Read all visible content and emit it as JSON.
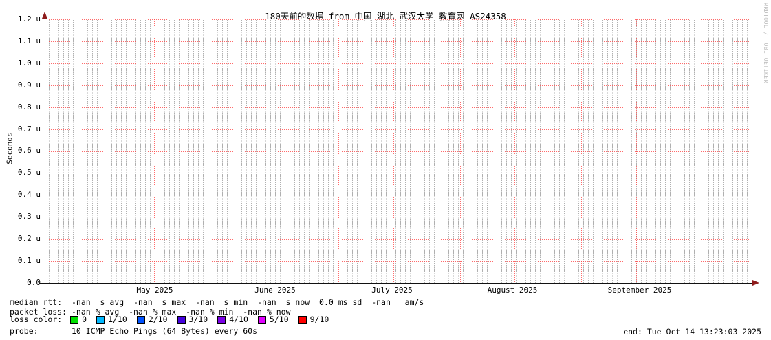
{
  "title": "180天前的数据 from 中国 湖北 武汉大学 教育网 AS24358",
  "watermark": "RRDTOOL / TOBI OETIKER",
  "y_axis": {
    "label": "Seconds",
    "ticks": [
      "1.2 u",
      "1.1 u",
      "1.0 u",
      "0.9 u",
      "0.8 u",
      "0.7 u",
      "0.6 u",
      "0.5 u",
      "0.4 u",
      "0.3 u",
      "0.2 u",
      "0.1 u",
      "0.0"
    ]
  },
  "x_axis": {
    "ticks": [
      "May 2025",
      "June 2025",
      "July 2025",
      "August 2025",
      "September 2025"
    ]
  },
  "legend": {
    "median_rtt": "median rtt:  -nan  s avg  -nan  s max  -nan  s min  -nan  s now  0.0 ms sd  -nan   am/s",
    "packet_loss": "packet loss: -nan % avg  -nan % max  -nan % min  -nan % now",
    "loss_color_label": "loss color:",
    "loss_colors": [
      {
        "label": "0",
        "color": "#00e000"
      },
      {
        "label": "1/10",
        "color": "#00b8ff"
      },
      {
        "label": "2/10",
        "color": "#0052ff"
      },
      {
        "label": "3/10",
        "color": "#4400dd"
      },
      {
        "label": "4/10",
        "color": "#7a00e6"
      },
      {
        "label": "5/10",
        "color": "#e000ff"
      },
      {
        "label": "9/10",
        "color": "#ff0000"
      }
    ],
    "probe": "probe:       10 ICMP Echo Pings (64 Bytes) every 60s",
    "end": "end: Tue Oct 14 13:23:03 2025"
  },
  "chart_data": {
    "type": "line",
    "title": "180天前的数据 from 中国 湖北 武汉大学 教育网 AS24358",
    "xlabel": "",
    "ylabel": "Seconds",
    "x_tick_labels": [
      "May 2025",
      "June 2025",
      "July 2025",
      "August 2025",
      "September 2025"
    ],
    "y_tick_labels": [
      "0.0",
      "0.1 u",
      "0.2 u",
      "0.3 u",
      "0.4 u",
      "0.5 u",
      "0.6 u",
      "0.7 u",
      "0.8 u",
      "0.9 u",
      "1.0 u",
      "1.1 u",
      "1.2 u"
    ],
    "ylim": [
      0,
      1.2e-06
    ],
    "grid": true,
    "legend_position": "bottom",
    "series": [
      {
        "name": "median rtt",
        "values": [],
        "note": "all values -nan"
      },
      {
        "name": "packet loss",
        "values": [],
        "note": "all values -nan"
      }
    ],
    "stats": {
      "median_rtt": {
        "avg": "-nan s",
        "max": "-nan s",
        "min": "-nan s",
        "now": "-nan s",
        "sd": "0.0 ms",
        "am_s": "-nan"
      },
      "packet_loss": {
        "avg": "-nan %",
        "max": "-nan %",
        "min": "-nan %",
        "now": "-nan %"
      }
    },
    "note": "Empty graph: no data points are drawn for the 180-day window ending Tue Oct 14 13:23:03 2025."
  }
}
